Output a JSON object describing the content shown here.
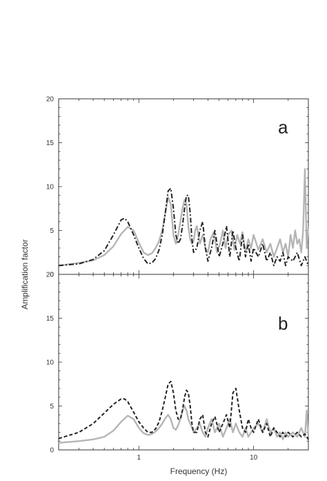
{
  "figure": {
    "ylabel": "Amplification factor",
    "xlabel": "Frequency (Hz)"
  },
  "chart_data": [
    {
      "type": "line",
      "panel_label": "a",
      "xscale": "log",
      "xlim": [
        0.2,
        30
      ],
      "ylim": [
        0,
        20
      ],
      "x_ticks": [
        1,
        10
      ],
      "x_tick_labels": [
        "1",
        "10"
      ],
      "y_ticks": [
        0,
        5,
        10,
        15,
        20
      ],
      "y_tick_labels": [
        "0",
        "5",
        "10",
        "15",
        "20"
      ],
      "grid": false,
      "series": [
        {
          "style": "solid",
          "color": "#b5b5b5",
          "x": [
            0.2,
            0.3,
            0.4,
            0.5,
            0.6,
            0.7,
            0.8,
            0.9,
            1.0,
            1.1,
            1.2,
            1.3,
            1.4,
            1.5,
            1.6,
            1.7,
            1.8,
            1.9,
            2.0,
            2.1,
            2.2,
            2.3,
            2.4,
            2.5,
            2.6,
            2.7,
            2.8,
            2.9,
            3.0,
            3.1,
            3.2,
            3.4,
            3.6,
            3.8,
            4.0,
            4.2,
            4.5,
            4.8,
            5.1,
            5.4,
            5.7,
            6.0,
            6.4,
            6.8,
            7.2,
            7.6,
            8.0,
            8.5,
            9.0,
            9.5,
            10,
            11,
            12,
            13,
            14,
            15,
            16,
            17,
            18,
            19,
            20,
            21,
            22,
            23,
            24,
            25,
            26,
            27,
            28,
            29,
            30
          ],
          "y": [
            1.0,
            1.3,
            1.6,
            2.2,
            3.2,
            4.6,
            5.4,
            5.0,
            3.6,
            2.5,
            2.2,
            2.4,
            3.0,
            3.8,
            5.0,
            7.0,
            8.8,
            8.0,
            4.5,
            3.5,
            4.5,
            6.0,
            7.5,
            8.5,
            8.0,
            5.5,
            4.0,
            3.5,
            3.8,
            5.0,
            5.5,
            3.5,
            4.5,
            3.0,
            2.5,
            4.0,
            4.8,
            2.5,
            3.5,
            5.0,
            3.0,
            4.5,
            5.0,
            2.8,
            4.5,
            3.5,
            4.8,
            2.5,
            4.0,
            3.0,
            4.5,
            2.8,
            4.0,
            2.5,
            3.5,
            2.0,
            3.0,
            4.0,
            2.5,
            3.5,
            2.0,
            4.5,
            3.0,
            5.0,
            3.5,
            4.0,
            2.5,
            5.0,
            12.0,
            3.0,
            5.5
          ]
        },
        {
          "style": "dashdot",
          "color": "#222222",
          "x": [
            0.2,
            0.3,
            0.4,
            0.5,
            0.6,
            0.7,
            0.75,
            0.8,
            0.9,
            1.0,
            1.1,
            1.2,
            1.3,
            1.4,
            1.5,
            1.6,
            1.7,
            1.8,
            1.9,
            2.0,
            2.1,
            2.2,
            2.3,
            2.4,
            2.5,
            2.6,
            2.7,
            2.8,
            2.9,
            3.0,
            3.2,
            3.4,
            3.6,
            3.8,
            4.0,
            4.3,
            4.6,
            5.0,
            5.4,
            5.8,
            6.2,
            6.6,
            7.0,
            7.5,
            8.0,
            8.5,
            9.0,
            9.5,
            10,
            11,
            12,
            13,
            14,
            15,
            16,
            17,
            18,
            19,
            20,
            22,
            24,
            26,
            28,
            30
          ],
          "y": [
            1.0,
            1.2,
            1.7,
            2.7,
            4.5,
            6.2,
            6.4,
            6.0,
            4.5,
            3.0,
            1.8,
            1.2,
            1.3,
            1.8,
            2.8,
            4.5,
            7.0,
            9.5,
            9.8,
            7.5,
            4.5,
            3.5,
            4.0,
            5.5,
            7.5,
            9.0,
            9.0,
            7.0,
            4.0,
            2.5,
            3.0,
            5.0,
            6.0,
            3.0,
            1.5,
            3.0,
            5.0,
            2.0,
            3.5,
            5.5,
            2.0,
            5.0,
            3.0,
            1.5,
            4.5,
            2.0,
            3.5,
            1.5,
            3.0,
            2.0,
            3.5,
            1.5,
            2.5,
            1.0,
            2.0,
            1.5,
            2.5,
            1.0,
            2.0,
            1.5,
            2.5,
            1.0,
            2.0,
            1.0
          ]
        }
      ]
    },
    {
      "type": "line",
      "panel_label": "b",
      "xscale": "log",
      "xlim": [
        0.2,
        30
      ],
      "ylim": [
        0,
        20
      ],
      "x_ticks": [
        1,
        10
      ],
      "x_tick_labels": [
        "1",
        "10"
      ],
      "y_ticks": [
        0,
        5,
        10,
        15,
        20
      ],
      "y_tick_labels": [
        "0",
        "5",
        "10",
        "15",
        "20"
      ],
      "grid": false,
      "series": [
        {
          "style": "solid",
          "color": "#b5b5b5",
          "x": [
            0.2,
            0.3,
            0.4,
            0.5,
            0.6,
            0.7,
            0.8,
            0.9,
            1.0,
            1.1,
            1.2,
            1.3,
            1.4,
            1.5,
            1.6,
            1.7,
            1.8,
            1.9,
            2.0,
            2.1,
            2.2,
            2.3,
            2.4,
            2.5,
            2.6,
            2.7,
            2.8,
            2.9,
            3.0,
            3.2,
            3.4,
            3.6,
            3.8,
            4.0,
            4.3,
            4.6,
            5.0,
            5.4,
            5.8,
            6.2,
            6.6,
            7.0,
            7.5,
            8.0,
            8.5,
            9.0,
            9.5,
            10,
            11,
            12,
            13,
            14,
            15,
            16,
            17,
            18,
            19,
            20,
            22,
            24,
            26,
            28,
            29,
            30
          ],
          "y": [
            0.8,
            1.0,
            1.2,
            1.5,
            2.2,
            3.2,
            3.9,
            3.5,
            2.5,
            1.9,
            1.7,
            1.8,
            2.1,
            2.5,
            3.0,
            3.6,
            4.0,
            3.5,
            2.5,
            2.3,
            2.8,
            3.5,
            4.5,
            5.0,
            4.5,
            3.5,
            3.0,
            2.5,
            2.0,
            2.5,
            3.0,
            2.0,
            1.5,
            2.5,
            3.5,
            2.0,
            3.0,
            1.5,
            2.5,
            3.5,
            2.0,
            3.0,
            2.0,
            1.5,
            2.5,
            1.5,
            2.0,
            2.5,
            3.0,
            2.0,
            3.5,
            2.0,
            2.5,
            1.5,
            2.0,
            1.2,
            2.0,
            1.5,
            2.0,
            1.5,
            2.5,
            1.5,
            4.5,
            1.5
          ]
        },
        {
          "style": "dashed",
          "color": "#222222",
          "x": [
            0.2,
            0.3,
            0.4,
            0.5,
            0.6,
            0.7,
            0.75,
            0.8,
            0.9,
            1.0,
            1.1,
            1.2,
            1.3,
            1.4,
            1.5,
            1.6,
            1.7,
            1.8,
            1.9,
            2.0,
            2.1,
            2.2,
            2.3,
            2.4,
            2.5,
            2.6,
            2.7,
            2.8,
            2.9,
            3.0,
            3.2,
            3.4,
            3.6,
            3.8,
            4.0,
            4.3,
            4.6,
            5.0,
            5.4,
            5.8,
            6.2,
            6.6,
            7.0,
            7.5,
            8.0,
            8.5,
            9.0,
            9.5,
            10,
            11,
            12,
            13,
            14,
            15,
            16,
            17,
            18,
            19,
            20,
            22,
            24,
            26,
            28,
            30
          ],
          "y": [
            1.3,
            2.0,
            3.0,
            4.2,
            5.2,
            5.8,
            5.8,
            5.5,
            4.3,
            3.2,
            2.5,
            2.0,
            2.0,
            2.4,
            3.2,
            4.5,
            6.0,
            7.5,
            7.8,
            6.5,
            4.5,
            3.5,
            3.5,
            4.5,
            6.0,
            6.8,
            6.5,
            5.0,
            3.0,
            2.0,
            2.0,
            3.5,
            4.0,
            2.0,
            1.5,
            3.0,
            3.8,
            2.0,
            3.0,
            4.0,
            2.5,
            6.5,
            7.0,
            4.5,
            2.5,
            2.0,
            3.5,
            2.5,
            2.0,
            3.5,
            2.0,
            3.0,
            1.5,
            2.5,
            2.0,
            1.5,
            2.0,
            1.5,
            2.0,
            1.5,
            2.0,
            1.5,
            1.8,
            1.2
          ]
        }
      ]
    }
  ]
}
